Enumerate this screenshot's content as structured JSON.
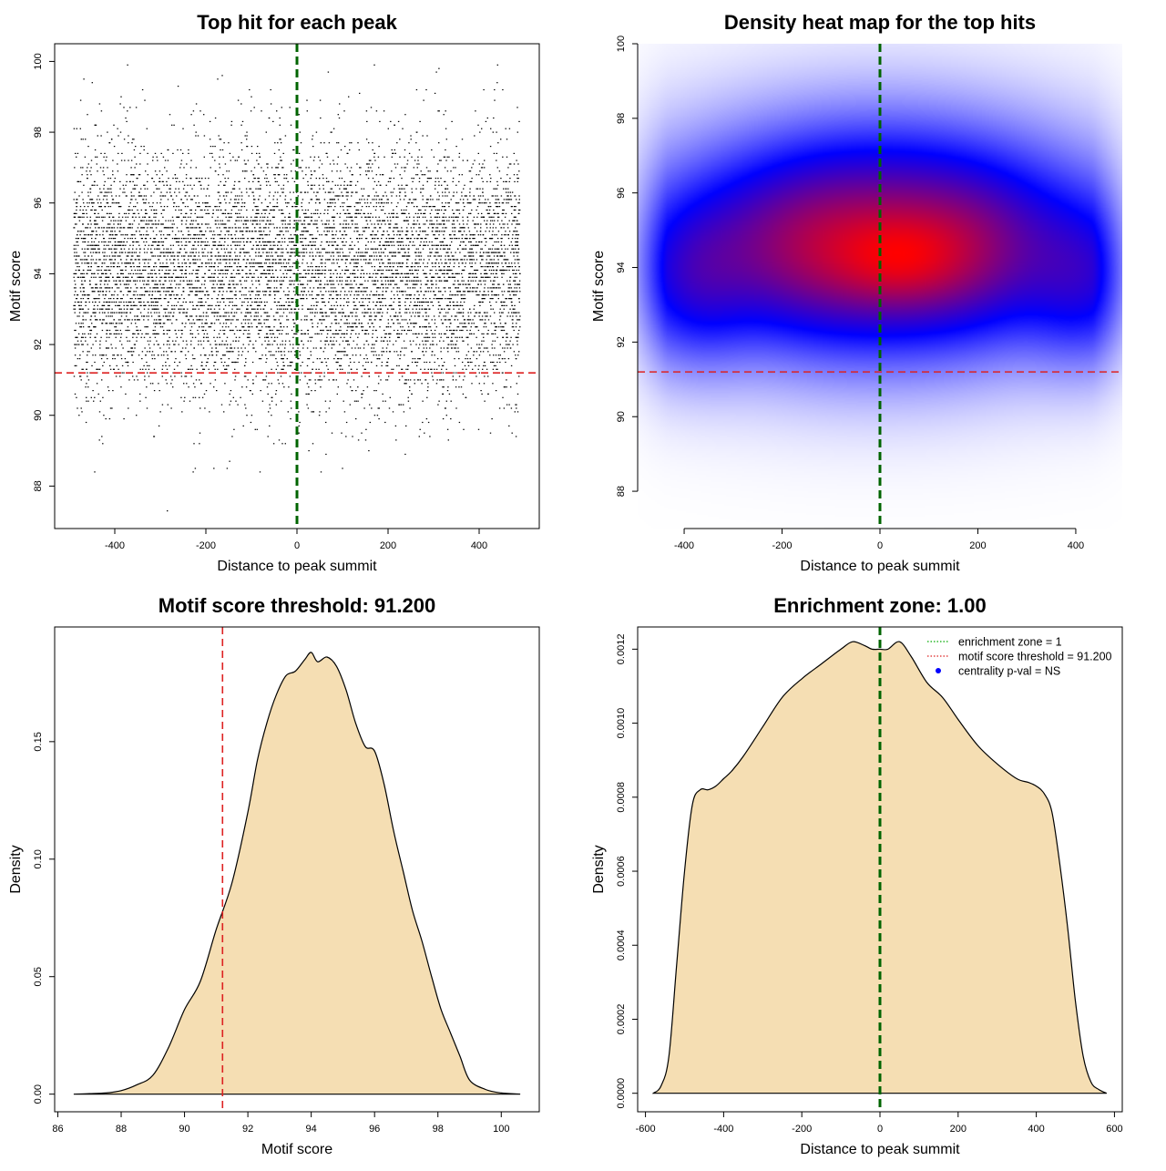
{
  "figure": {
    "background": "#ffffff"
  },
  "chart_data": [
    {
      "type": "scatter",
      "title": "Top hit for each peak",
      "xlabel": "Distance to peak summit",
      "ylabel": "Motif score",
      "xlim": [
        -532,
        532
      ],
      "ylim": [
        86.8,
        100.5
      ],
      "xticks": [
        -400,
        -200,
        0,
        200,
        400
      ],
      "yticks": [
        88,
        90,
        92,
        94,
        96,
        98,
        100
      ],
      "x_range_of_points": [
        -490,
        490
      ],
      "score_step": 0.1,
      "score_min": 87.1,
      "score_max": 100,
      "reference_lines": [
        {
          "axis": "x",
          "value": 0,
          "color": "#006400",
          "style": "dashed"
        },
        {
          "axis": "y",
          "value": 91.2,
          "color": "#dd2222",
          "style": "dashed"
        }
      ],
      "colors": {
        "points": "#000000"
      }
    },
    {
      "type": "heatmap",
      "title": "Density heat map for the top hits",
      "xlabel": "Distance to peak summit",
      "ylabel": "Motif score",
      "xlim": [
        -495,
        495
      ],
      "ylim": [
        87.0,
        100.0
      ],
      "xticks": [
        -400,
        -200,
        0,
        200,
        400
      ],
      "yticks": [
        88,
        90,
        92,
        94,
        96,
        98,
        100
      ],
      "density_blobs": [
        {
          "x": 0,
          "y": 94.7,
          "sx": 240,
          "sy": 1.7,
          "w": 1.0
        },
        {
          "x": 40,
          "y": 94.2,
          "sx": 90,
          "sy": 0.8,
          "w": 0.45
        },
        {
          "x": -380,
          "y": 93.7,
          "sx": 80,
          "sy": 1.3,
          "w": 0.35
        },
        {
          "x": 420,
          "y": 93.7,
          "sx": 80,
          "sy": 1.3,
          "w": 0.35
        },
        {
          "x": -150,
          "y": 94.5,
          "sx": 120,
          "sy": 1.2,
          "w": 0.3
        },
        {
          "x": 180,
          "y": 94.5,
          "sx": 110,
          "sy": 1.2,
          "w": 0.3
        }
      ],
      "reference_lines": [
        {
          "axis": "x",
          "value": 0,
          "color": "#006400",
          "style": "dashed"
        },
        {
          "axis": "y",
          "value": 91.2,
          "color": "#dd2222",
          "style": "dashed"
        }
      ],
      "colors": {
        "low": "#ffffff",
        "mid": "#0000ff",
        "high": "#ff0000"
      }
    },
    {
      "type": "area",
      "title": "Motif score threshold: 91.200",
      "xlabel": "Motif score",
      "ylabel": "Density",
      "xlim": [
        85.9,
        101.2
      ],
      "ylim": [
        -0.0075,
        0.1988
      ],
      "xticks": [
        86,
        88,
        90,
        92,
        94,
        96,
        98,
        100
      ],
      "yticks": [
        0.0,
        0.05,
        0.1,
        0.15
      ],
      "ytick_labels": [
        "0.00",
        "0.05",
        "0.10",
        "0.15"
      ],
      "x": [
        86.5,
        87.0,
        87.5,
        88.0,
        88.5,
        89.0,
        89.5,
        90.0,
        90.5,
        91.0,
        91.5,
        92.0,
        92.3,
        92.6,
        92.9,
        93.2,
        93.5,
        93.8,
        94.0,
        94.2,
        94.5,
        94.8,
        95.1,
        95.4,
        95.7,
        96.0,
        96.3,
        96.6,
        96.9,
        97.2,
        97.5,
        97.8,
        98.1,
        98.4,
        98.7,
        99.0,
        99.5,
        100.0,
        100.6
      ],
      "y": [
        0.0,
        0.0002,
        0.0005,
        0.0015,
        0.004,
        0.008,
        0.02,
        0.036,
        0.048,
        0.07,
        0.09,
        0.12,
        0.142,
        0.158,
        0.17,
        0.178,
        0.18,
        0.185,
        0.188,
        0.184,
        0.186,
        0.182,
        0.172,
        0.158,
        0.148,
        0.146,
        0.132,
        0.112,
        0.095,
        0.078,
        0.065,
        0.05,
        0.036,
        0.026,
        0.016,
        0.006,
        0.002,
        0.0005,
        0.0
      ],
      "reference_lines": [
        {
          "axis": "x",
          "value": 91.2,
          "color": "#dd2222",
          "style": "dashed"
        }
      ],
      "colors": {
        "fill": "#f5deb3",
        "line": "#000000"
      }
    },
    {
      "type": "area",
      "title": "Enrichment zone: 1.00",
      "xlabel": "Distance to peak summit",
      "ylabel": "Density",
      "xlim": [
        -620,
        620
      ],
      "ylim": [
        -5e-05,
        0.00126
      ],
      "xticks": [
        -600,
        -400,
        -200,
        0,
        200,
        400,
        600
      ],
      "yticks": [
        0.0,
        0.0002,
        0.0004,
        0.0006,
        0.0008,
        0.001,
        0.0012
      ],
      "ytick_labels": [
        "0.0000",
        "0.0002",
        "0.0004",
        "0.0006",
        "0.0008",
        "0.0010",
        "0.0012"
      ],
      "x": [
        -580,
        -560,
        -540,
        -520,
        -500,
        -480,
        -460,
        -440,
        -420,
        -400,
        -380,
        -350,
        -300,
        -250,
        -200,
        -150,
        -100,
        -70,
        -40,
        -20,
        0,
        20,
        50,
        80,
        120,
        160,
        200,
        250,
        300,
        350,
        380,
        400,
        420,
        440,
        460,
        480,
        500,
        520,
        540,
        560,
        580
      ],
      "y": [
        0.0,
        2e-05,
        0.0001,
        0.00035,
        0.0006,
        0.00078,
        0.00082,
        0.00082,
        0.00083,
        0.00085,
        0.00087,
        0.00091,
        0.00099,
        0.00107,
        0.00112,
        0.00116,
        0.0012,
        0.00122,
        0.00121,
        0.0012,
        0.0012,
        0.0012,
        0.00122,
        0.00118,
        0.00111,
        0.00107,
        0.00101,
        0.00094,
        0.00089,
        0.00085,
        0.00084,
        0.00083,
        0.00081,
        0.00076,
        0.00062,
        0.00045,
        0.00025,
        0.0001,
        3e-05,
        1e-05,
        0.0
      ],
      "reference_lines": [
        {
          "axis": "x",
          "value": 0,
          "color": "#006400",
          "style": "dashed"
        }
      ],
      "legend": {
        "position": "top-right",
        "entries": [
          {
            "label": "enrichment zone = 1",
            "color": "#00aa00",
            "symbol": "dotted-line"
          },
          {
            "label": "motif score threshold = 91.200",
            "color": "#dd2222",
            "symbol": "dotted-line"
          },
          {
            "label": "centrality p-val = NS",
            "color": "#0000ff",
            "symbol": "dot"
          }
        ]
      },
      "colors": {
        "fill": "#f5deb3",
        "line": "#000000"
      }
    }
  ]
}
